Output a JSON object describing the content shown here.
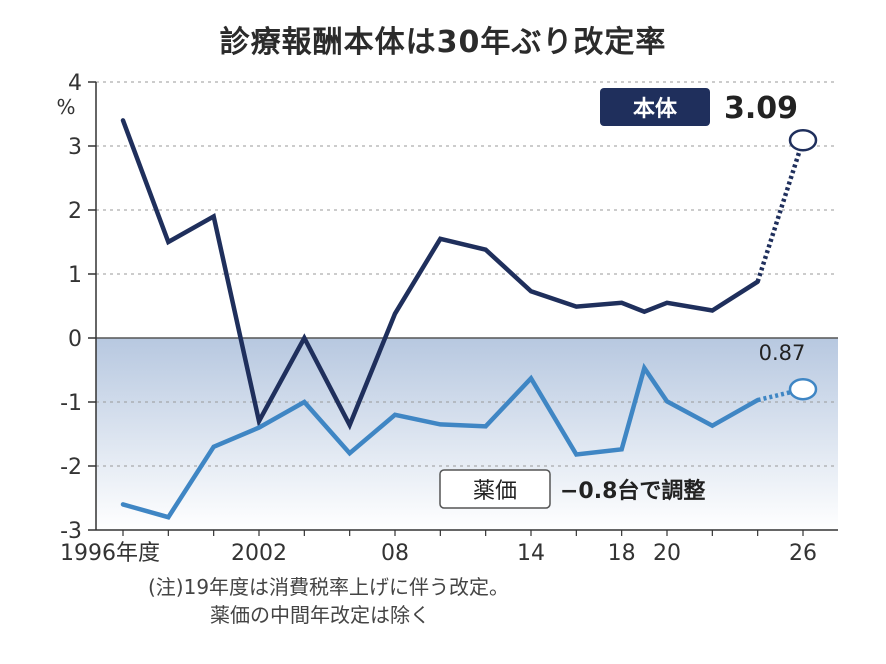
{
  "chart_data": {
    "type": "line",
    "title": "診療報酬本体は30年ぶり改定率",
    "unit": "%",
    "ylim": [
      -3,
      4
    ],
    "yticks": [
      "4",
      "3",
      "2",
      "1",
      "0",
      "-1",
      "-2",
      "-3"
    ],
    "xlim": [
      1996,
      2026
    ],
    "xticks": [
      {
        "x": 1996,
        "label": "1996年度"
      },
      {
        "x": 2002,
        "label": "2002"
      },
      {
        "x": 2008,
        "label": "08"
      },
      {
        "x": 2014,
        "label": "14"
      },
      {
        "x": 2018,
        "label": "18"
      },
      {
        "x": 2020,
        "label": "20"
      },
      {
        "x": 2026,
        "label": "26"
      }
    ],
    "grid": true,
    "series": [
      {
        "name": "本体",
        "color": "#1f2f5c",
        "points": [
          [
            1996,
            3.4
          ],
          [
            1998,
            1.5
          ],
          [
            2000,
            1.9
          ],
          [
            2002,
            -1.3
          ],
          [
            2004,
            0.0
          ],
          [
            2006,
            -1.36
          ],
          [
            2008,
            0.38
          ],
          [
            2010,
            1.55
          ],
          [
            2012,
            1.38
          ],
          [
            2014,
            0.73
          ],
          [
            2016,
            0.49
          ],
          [
            2018,
            0.55
          ],
          [
            2019,
            0.41
          ],
          [
            2020,
            0.55
          ],
          [
            2022,
            0.43
          ],
          [
            2024,
            0.88
          ]
        ],
        "projected": [
          2026,
          3.09
        ],
        "label": "本体",
        "value_label": "3.09"
      },
      {
        "name": "薬価",
        "color": "#3f86c4",
        "points": [
          [
            1996,
            -2.6
          ],
          [
            1998,
            -2.8
          ],
          [
            2000,
            -1.7
          ],
          [
            2002,
            -1.4
          ],
          [
            2004,
            -1.0
          ],
          [
            2006,
            -1.8
          ],
          [
            2008,
            -1.2
          ],
          [
            2010,
            -1.35
          ],
          [
            2012,
            -1.38
          ],
          [
            2014,
            -0.63
          ],
          [
            2016,
            -1.82
          ],
          [
            2018,
            -1.74
          ],
          [
            2019,
            -0.47
          ],
          [
            2020,
            -0.99
          ],
          [
            2022,
            -1.37
          ],
          [
            2024,
            -0.97
          ]
        ],
        "projected": [
          2026,
          -0.8
        ],
        "label": "薬価",
        "value_label": "−0.8台で調整"
      }
    ],
    "annotations": [
      "0.87"
    ],
    "notes": [
      "(注)19年度は消費税率上げに伴う改定。",
      "薬価の中間年改定は除く"
    ]
  }
}
